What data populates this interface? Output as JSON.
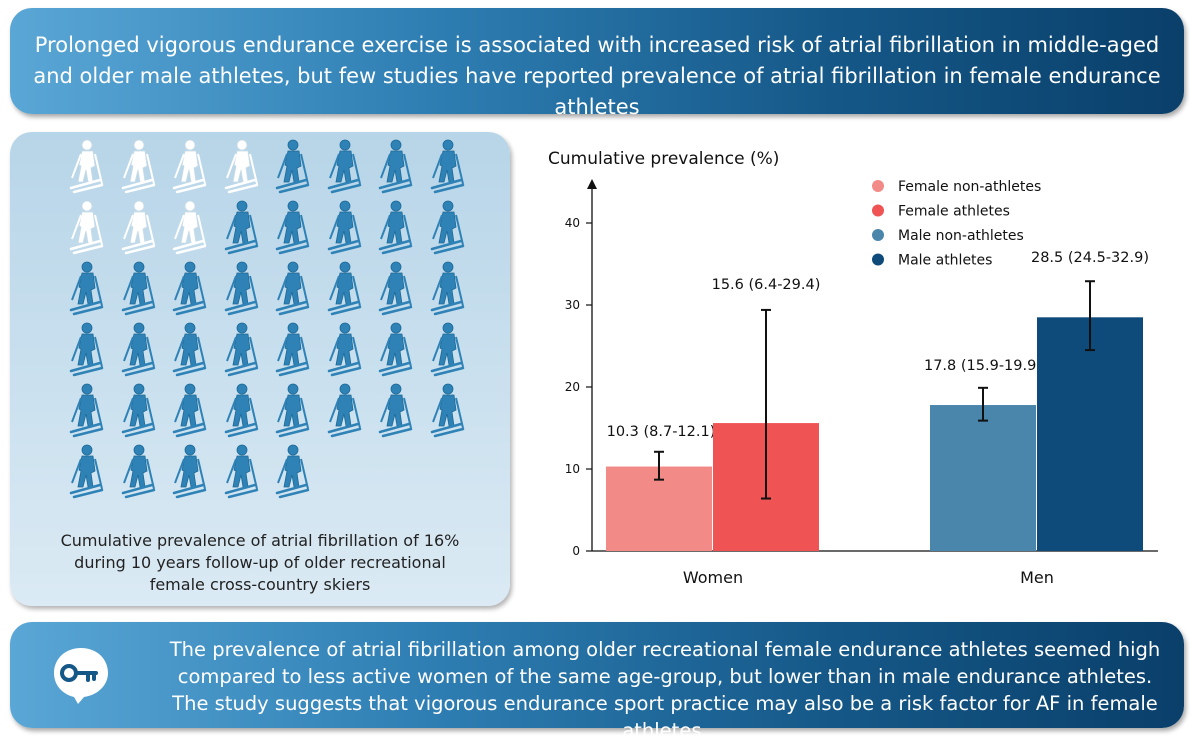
{
  "header": {
    "line1": "Prolonged vigorous endurance exercise is associated with increased risk of atrial fibrillation in middle-aged",
    "line2": "and older male athletes, but few studies have reported prevalence of atrial fibrillation in female endurance athletes"
  },
  "pictogram": {
    "total_icons": 45,
    "highlighted_icons": 7,
    "caption_line1": "Cumulative prevalence of atrial fibrillation of 16%",
    "caption_line2": "during 10 years follow-up of older recreational",
    "caption_line3": "female cross-country skiers",
    "highlight_color": "#ffffff",
    "icon_color": "#2f82b6"
  },
  "chart_data": {
    "type": "bar",
    "ylabel": "Cumulative prevalence (%)",
    "ylim": [
      0,
      45
    ],
    "yticks": [
      "0",
      "10",
      "20",
      "30",
      "40"
    ],
    "categories": [
      "Women",
      "Men"
    ],
    "bars": [
      {
        "series": "Female non-athletes",
        "category": "Women",
        "value": 10.3,
        "ci": [
          8.7,
          12.1
        ],
        "label": "10.3 (8.7-12.1)",
        "color": "#f28b87"
      },
      {
        "series": "Female athletes",
        "category": "Women",
        "value": 15.6,
        "ci": [
          6.4,
          29.4
        ],
        "label": "15.6 (6.4-29.4)",
        "color": "#ef5354"
      },
      {
        "series": "Male non-athletes",
        "category": "Men",
        "value": 17.8,
        "ci": [
          15.9,
          19.9
        ],
        "label": "17.8 (15.9-19.9)",
        "color": "#4a86ab"
      },
      {
        "series": "Male athletes",
        "category": "Men",
        "value": 28.5,
        "ci": [
          24.5,
          32.9
        ],
        "label": "28.5 (24.5-32.9)",
        "color": "#0f4b7a"
      }
    ],
    "legend": [
      {
        "name": "Female non-athletes",
        "color": "#f28b87"
      },
      {
        "name": "Female athletes",
        "color": "#ef5354"
      },
      {
        "name": "Male non-athletes",
        "color": "#4a86ab"
      },
      {
        "name": "Male athletes",
        "color": "#0f4b7a"
      }
    ],
    "legend_position": "top-right"
  },
  "footer": {
    "line1": "The prevalence of atrial fibrillation among older recreational female endurance athletes seemed  high",
    "line2": "compared to less active women of the same age-group, but lower than in male endurance athletes.",
    "line3": "The study suggests that vigorous endurance sport practice may also be a risk factor for AF in female athletes."
  }
}
